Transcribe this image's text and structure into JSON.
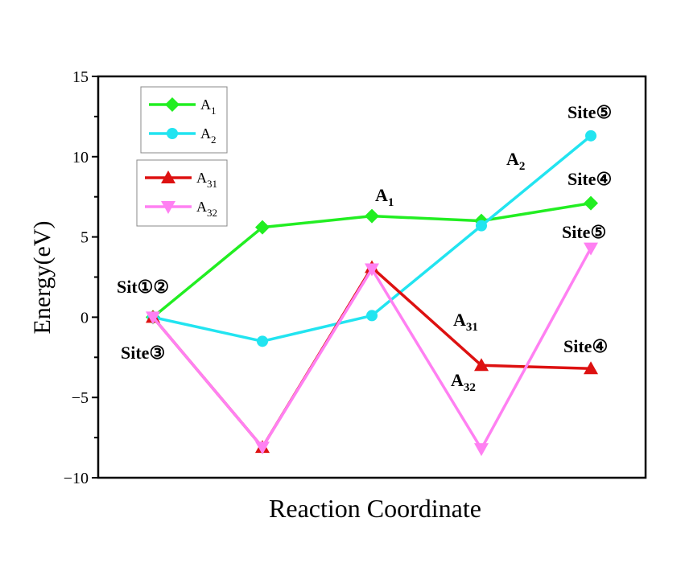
{
  "chart_data": {
    "type": "line",
    "title": "",
    "xlabel": "Reaction Coordinate",
    "ylabel": "Energy(eV)",
    "ylim": [
      -10,
      15
    ],
    "yticks": [
      -10,
      -5,
      0,
      5,
      10,
      15
    ],
    "xlim": [
      0.5,
      5.5
    ],
    "x": [
      1,
      2,
      3,
      4,
      5
    ],
    "grid": false,
    "series": [
      {
        "name": "A1",
        "base": "A",
        "sub": "1",
        "color": "#22ee22",
        "marker": "diamond",
        "values": [
          0,
          5.6,
          6.3,
          6.0,
          7.1
        ]
      },
      {
        "name": "A2",
        "base": "A",
        "sub": "2",
        "color": "#22e4f0",
        "marker": "circle",
        "values": [
          0,
          -1.5,
          0.1,
          5.7,
          11.3
        ]
      },
      {
        "name": "A31",
        "base": "A",
        "sub": "31",
        "color": "#dd1111",
        "marker": "triangle-up",
        "values": [
          0,
          -8.1,
          3.1,
          -3.0,
          -3.2
        ]
      },
      {
        "name": "A32",
        "base": "A",
        "sub": "32",
        "color": "#ff80f2",
        "marker": "triangle-down",
        "values": [
          0,
          -8.1,
          3.0,
          -8.2,
          4.3
        ]
      }
    ],
    "legends": [
      {
        "placement": "top-left",
        "entries": [
          "A1",
          "A2"
        ]
      },
      {
        "placement": "upper-left",
        "entries": [
          "A31",
          "A32"
        ]
      }
    ],
    "annotations": [
      {
        "text": "Sit①②"
      },
      {
        "text": "Site③"
      },
      {
        "base": "A",
        "sub": "1"
      },
      {
        "base": "A",
        "sub": "2"
      },
      {
        "text": "Site⑤"
      },
      {
        "text": "Site④"
      },
      {
        "text": "Site⑤"
      },
      {
        "base": "A",
        "sub": "31"
      },
      {
        "base": "A",
        "sub": "32"
      },
      {
        "text": "Site④"
      }
    ]
  }
}
